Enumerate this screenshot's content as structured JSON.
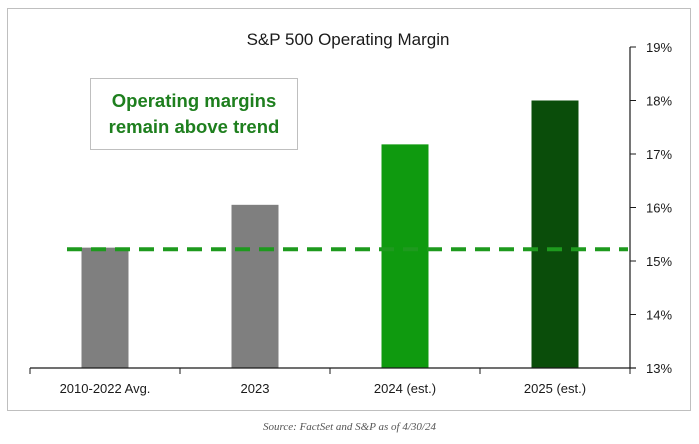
{
  "chart_data": {
    "type": "bar",
    "title": "S&P 500 Operating Margin",
    "categories": [
      "2010-2022 Avg.",
      "2023",
      "2024 (est.)",
      "2025 (est.)"
    ],
    "values": [
      15.25,
      16.05,
      17.18,
      18.0
    ],
    "bar_colors": [
      "#7f7f7f",
      "#7f7f7f",
      "#0f9a0f",
      "#0a4d0a"
    ],
    "ylim": [
      13,
      19
    ],
    "yticks": [
      "13%",
      "14%",
      "15%",
      "16%",
      "17%",
      "18%",
      "19%"
    ],
    "axis_position": "right",
    "reference_line": {
      "value": 15.22,
      "color": "#1e9a1e",
      "style": "dashed"
    },
    "annotation": {
      "line1": "Operating margins",
      "line2": "remain above trend",
      "color": "#1e7f1e"
    }
  },
  "source": "Source: FactSet and S&P as of 4/30/24"
}
